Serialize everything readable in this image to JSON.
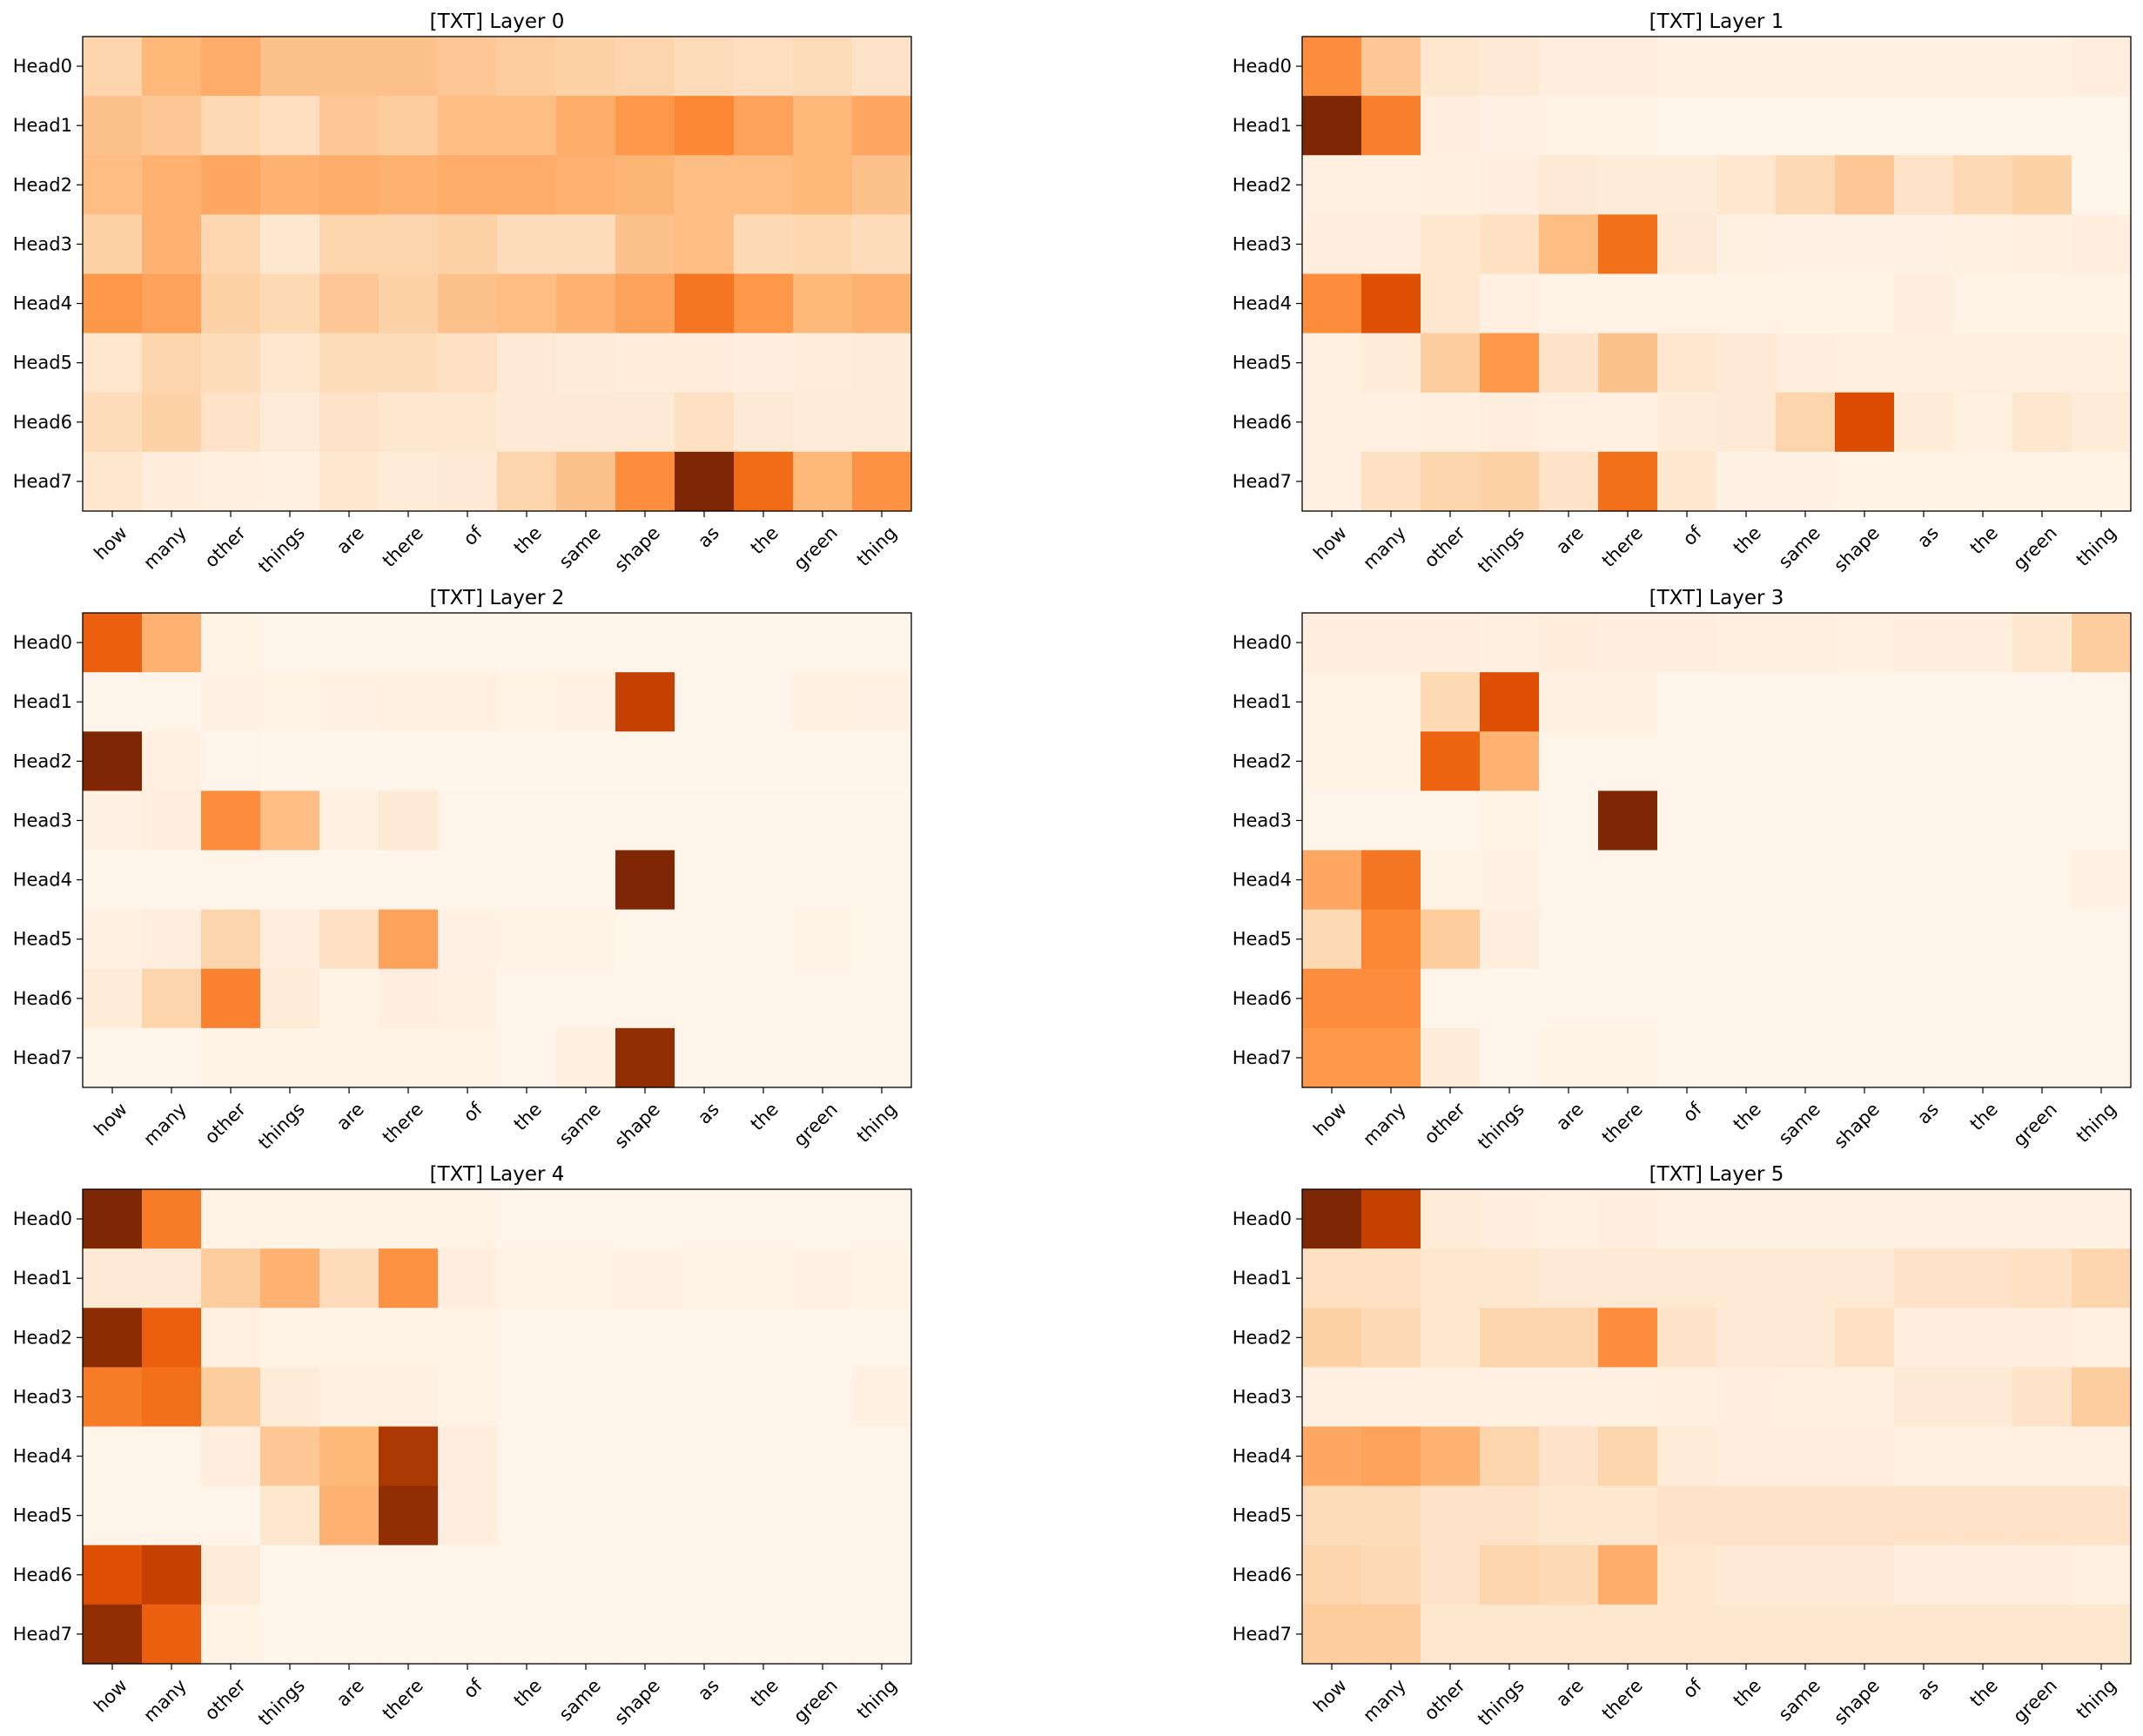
{
  "chart_data": [
    {
      "type": "heatmap",
      "title": "[TXT] Layer 0",
      "colormap": "Oranges",
      "value_range": [
        0,
        1
      ],
      "grid": false,
      "x_labels": [
        "how",
        "many",
        "other",
        "things",
        "are",
        "there",
        "of",
        "the",
        "same",
        "shape",
        "as",
        "the",
        "green",
        "thing"
      ],
      "y_labels": [
        "Head0",
        "Head1",
        "Head2",
        "Head3",
        "Head4",
        "Head5",
        "Head6",
        "Head7"
      ],
      "values": [
        [
          0.22,
          0.34,
          0.38,
          0.3,
          0.3,
          0.3,
          0.28,
          0.26,
          0.24,
          0.22,
          0.18,
          0.17,
          0.18,
          0.14
        ],
        [
          0.3,
          0.28,
          0.2,
          0.17,
          0.28,
          0.26,
          0.32,
          0.32,
          0.38,
          0.46,
          0.52,
          0.42,
          0.34,
          0.4
        ],
        [
          0.32,
          0.36,
          0.4,
          0.36,
          0.38,
          0.36,
          0.38,
          0.38,
          0.36,
          0.35,
          0.32,
          0.32,
          0.34,
          0.3
        ],
        [
          0.24,
          0.36,
          0.21,
          0.12,
          0.22,
          0.22,
          0.24,
          0.18,
          0.18,
          0.3,
          0.32,
          0.2,
          0.21,
          0.18
        ],
        [
          0.46,
          0.42,
          0.24,
          0.2,
          0.28,
          0.24,
          0.3,
          0.32,
          0.36,
          0.42,
          0.58,
          0.46,
          0.34,
          0.36
        ],
        [
          0.12,
          0.22,
          0.18,
          0.12,
          0.18,
          0.18,
          0.16,
          0.1,
          0.08,
          0.07,
          0.07,
          0.06,
          0.07,
          0.08
        ],
        [
          0.18,
          0.24,
          0.14,
          0.09,
          0.14,
          0.12,
          0.12,
          0.1,
          0.1,
          0.1,
          0.16,
          0.1,
          0.08,
          0.08
        ],
        [
          0.12,
          0.07,
          0.05,
          0.04,
          0.12,
          0.08,
          0.1,
          0.22,
          0.3,
          0.5,
          1.0,
          0.62,
          0.34,
          0.48
        ]
      ]
    },
    {
      "type": "heatmap",
      "title": "[TXT] Layer 1",
      "colormap": "Oranges",
      "value_range": [
        0,
        1
      ],
      "grid": false,
      "x_labels": [
        "how",
        "many",
        "other",
        "things",
        "are",
        "there",
        "of",
        "the",
        "same",
        "shape",
        "as",
        "the",
        "green",
        "thing"
      ],
      "y_labels": [
        "Head0",
        "Head1",
        "Head2",
        "Head3",
        "Head4",
        "Head5",
        "Head6",
        "Head7"
      ],
      "values": [
        [
          0.5,
          0.28,
          0.12,
          0.1,
          0.06,
          0.06,
          0.04,
          0.04,
          0.04,
          0.04,
          0.04,
          0.04,
          0.04,
          0.06
        ],
        [
          1.0,
          0.55,
          0.06,
          0.03,
          0.02,
          0.02,
          0.01,
          0.01,
          0.01,
          0.01,
          0.01,
          0.01,
          0.01,
          0.01
        ],
        [
          0.04,
          0.04,
          0.05,
          0.06,
          0.1,
          0.08,
          0.08,
          0.12,
          0.2,
          0.28,
          0.14,
          0.2,
          0.24,
          0.0
        ],
        [
          0.06,
          0.06,
          0.12,
          0.16,
          0.32,
          0.6,
          0.1,
          0.04,
          0.03,
          0.03,
          0.03,
          0.04,
          0.05,
          0.06
        ],
        [
          0.5,
          0.72,
          0.12,
          0.04,
          0.02,
          0.02,
          0.02,
          0.02,
          0.02,
          0.02,
          0.06,
          0.02,
          0.02,
          0.02
        ],
        [
          0.04,
          0.08,
          0.26,
          0.46,
          0.14,
          0.3,
          0.12,
          0.1,
          0.06,
          0.05,
          0.05,
          0.05,
          0.05,
          0.05
        ],
        [
          0.04,
          0.04,
          0.05,
          0.06,
          0.04,
          0.04,
          0.08,
          0.1,
          0.22,
          0.74,
          0.08,
          0.04,
          0.12,
          0.08
        ],
        [
          0.04,
          0.16,
          0.22,
          0.24,
          0.14,
          0.6,
          0.12,
          0.03,
          0.03,
          0.02,
          0.02,
          0.02,
          0.02,
          0.02
        ]
      ]
    },
    {
      "type": "heatmap",
      "title": "[TXT] Layer 2",
      "colormap": "Oranges",
      "value_range": [
        0,
        1
      ],
      "grid": false,
      "x_labels": [
        "how",
        "many",
        "other",
        "things",
        "are",
        "there",
        "of",
        "the",
        "same",
        "shape",
        "as",
        "the",
        "green",
        "thing"
      ],
      "y_labels": [
        "Head0",
        "Head1",
        "Head2",
        "Head3",
        "Head4",
        "Head5",
        "Head6",
        "Head7"
      ],
      "values": [
        [
          0.66,
          0.36,
          0.02,
          0.01,
          0.01,
          0.01,
          0.01,
          0.01,
          0.01,
          0.01,
          0.01,
          0.01,
          0.01,
          0.01
        ],
        [
          0.01,
          0.01,
          0.03,
          0.02,
          0.03,
          0.04,
          0.04,
          0.02,
          0.03,
          0.8,
          0.01,
          0.01,
          0.04,
          0.03
        ],
        [
          1.0,
          0.04,
          0.01,
          0.0,
          0.0,
          0.0,
          0.0,
          0.0,
          0.0,
          0.0,
          0.0,
          0.0,
          0.0,
          0.0
        ],
        [
          0.03,
          0.06,
          0.5,
          0.32,
          0.04,
          0.1,
          0.01,
          0.01,
          0.01,
          0.01,
          0.01,
          0.01,
          0.01,
          0.01
        ],
        [
          0.01,
          0.01,
          0.01,
          0.01,
          0.01,
          0.01,
          0.01,
          0.01,
          0.01,
          1.0,
          0.01,
          0.01,
          0.01,
          0.01
        ],
        [
          0.04,
          0.06,
          0.22,
          0.06,
          0.16,
          0.42,
          0.03,
          0.02,
          0.02,
          0.01,
          0.01,
          0.01,
          0.02,
          0.01
        ],
        [
          0.08,
          0.22,
          0.54,
          0.08,
          0.02,
          0.06,
          0.04,
          0.01,
          0.01,
          0.01,
          0.01,
          0.01,
          0.01,
          0.01
        ],
        [
          0.01,
          0.01,
          0.02,
          0.02,
          0.02,
          0.02,
          0.02,
          0.01,
          0.05,
          0.94,
          0.01,
          0.01,
          0.01,
          0.01
        ]
      ]
    },
    {
      "type": "heatmap",
      "title": "[TXT] Layer 3",
      "colormap": "Oranges",
      "value_range": [
        0,
        1
      ],
      "grid": false,
      "x_labels": [
        "how",
        "many",
        "other",
        "things",
        "are",
        "there",
        "of",
        "the",
        "same",
        "shape",
        "as",
        "the",
        "green",
        "thing"
      ],
      "y_labels": [
        "Head0",
        "Head1",
        "Head2",
        "Head3",
        "Head4",
        "Head5",
        "Head6",
        "Head7"
      ],
      "values": [
        [
          0.06,
          0.06,
          0.06,
          0.05,
          0.07,
          0.06,
          0.06,
          0.05,
          0.05,
          0.04,
          0.06,
          0.06,
          0.12,
          0.26
        ],
        [
          0.02,
          0.02,
          0.2,
          0.72,
          0.04,
          0.04,
          0.01,
          0.01,
          0.01,
          0.01,
          0.01,
          0.01,
          0.01,
          0.01
        ],
        [
          0.02,
          0.02,
          0.64,
          0.36,
          0.01,
          0.01,
          0.01,
          0.01,
          0.01,
          0.01,
          0.01,
          0.01,
          0.01,
          0.01
        ],
        [
          0.01,
          0.01,
          0.01,
          0.02,
          0.01,
          1.0,
          0.01,
          0.01,
          0.01,
          0.01,
          0.01,
          0.01,
          0.01,
          0.01
        ],
        [
          0.4,
          0.58,
          0.02,
          0.03,
          0.01,
          0.01,
          0.01,
          0.01,
          0.01,
          0.01,
          0.01,
          0.01,
          0.01,
          0.03
        ],
        [
          0.2,
          0.52,
          0.26,
          0.06,
          0.01,
          0.01,
          0.01,
          0.01,
          0.01,
          0.01,
          0.01,
          0.01,
          0.01,
          0.01
        ],
        [
          0.5,
          0.5,
          0.01,
          0.01,
          0.01,
          0.01,
          0.01,
          0.01,
          0.01,
          0.01,
          0.01,
          0.01,
          0.01,
          0.01
        ],
        [
          0.46,
          0.46,
          0.08,
          0.01,
          0.02,
          0.02,
          0.01,
          0.01,
          0.01,
          0.01,
          0.01,
          0.01,
          0.01,
          0.01
        ]
      ]
    },
    {
      "type": "heatmap",
      "title": "[TXT] Layer 4",
      "colormap": "Oranges",
      "value_range": [
        0,
        1
      ],
      "grid": false,
      "x_labels": [
        "how",
        "many",
        "other",
        "things",
        "are",
        "there",
        "of",
        "the",
        "same",
        "shape",
        "as",
        "the",
        "green",
        "thing"
      ],
      "y_labels": [
        "Head0",
        "Head1",
        "Head2",
        "Head3",
        "Head4",
        "Head5",
        "Head6",
        "Head7"
      ],
      "values": [
        [
          1.0,
          0.56,
          0.02,
          0.02,
          0.02,
          0.02,
          0.02,
          0.01,
          0.01,
          0.01,
          0.01,
          0.01,
          0.01,
          0.01
        ],
        [
          0.1,
          0.1,
          0.26,
          0.36,
          0.18,
          0.48,
          0.06,
          0.02,
          0.02,
          0.03,
          0.02,
          0.02,
          0.03,
          0.02
        ],
        [
          0.96,
          0.66,
          0.04,
          0.02,
          0.02,
          0.02,
          0.02,
          0.01,
          0.01,
          0.01,
          0.01,
          0.01,
          0.01,
          0.01
        ],
        [
          0.56,
          0.6,
          0.26,
          0.08,
          0.04,
          0.04,
          0.02,
          0.01,
          0.01,
          0.01,
          0.01,
          0.01,
          0.01,
          0.04
        ],
        [
          0.01,
          0.01,
          0.06,
          0.28,
          0.34,
          0.86,
          0.06,
          0.01,
          0.01,
          0.01,
          0.01,
          0.01,
          0.01,
          0.01
        ],
        [
          0.01,
          0.01,
          0.01,
          0.12,
          0.36,
          0.94,
          0.06,
          0.01,
          0.01,
          0.01,
          0.01,
          0.01,
          0.01,
          0.01
        ],
        [
          0.72,
          0.8,
          0.08,
          0.01,
          0.01,
          0.01,
          0.01,
          0.01,
          0.01,
          0.01,
          0.01,
          0.01,
          0.01,
          0.01
        ],
        [
          0.94,
          0.66,
          0.02,
          0.01,
          0.01,
          0.01,
          0.01,
          0.01,
          0.01,
          0.01,
          0.01,
          0.01,
          0.01,
          0.01
        ]
      ]
    },
    {
      "type": "heatmap",
      "title": "[TXT] Layer 5",
      "colormap": "Oranges",
      "value_range": [
        0,
        1
      ],
      "grid": false,
      "x_labels": [
        "how",
        "many",
        "other",
        "things",
        "are",
        "there",
        "of",
        "the",
        "same",
        "shape",
        "as",
        "the",
        "green",
        "thing"
      ],
      "y_labels": [
        "Head0",
        "Head1",
        "Head2",
        "Head3",
        "Head4",
        "Head5",
        "Head6",
        "Head7"
      ],
      "values": [
        [
          1.0,
          0.8,
          0.08,
          0.06,
          0.04,
          0.06,
          0.03,
          0.03,
          0.03,
          0.03,
          0.03,
          0.03,
          0.03,
          0.03
        ],
        [
          0.16,
          0.16,
          0.12,
          0.12,
          0.1,
          0.1,
          0.1,
          0.1,
          0.1,
          0.1,
          0.14,
          0.14,
          0.16,
          0.22
        ],
        [
          0.24,
          0.2,
          0.12,
          0.22,
          0.22,
          0.5,
          0.14,
          0.1,
          0.1,
          0.16,
          0.06,
          0.06,
          0.06,
          0.04
        ],
        [
          0.04,
          0.04,
          0.04,
          0.04,
          0.04,
          0.04,
          0.05,
          0.06,
          0.05,
          0.05,
          0.1,
          0.1,
          0.14,
          0.26
        ],
        [
          0.4,
          0.42,
          0.36,
          0.22,
          0.14,
          0.22,
          0.08,
          0.06,
          0.06,
          0.06,
          0.04,
          0.04,
          0.04,
          0.04
        ],
        [
          0.18,
          0.18,
          0.14,
          0.14,
          0.12,
          0.12,
          0.14,
          0.14,
          0.14,
          0.14,
          0.14,
          0.14,
          0.14,
          0.14
        ],
        [
          0.22,
          0.2,
          0.14,
          0.22,
          0.2,
          0.38,
          0.12,
          0.1,
          0.1,
          0.1,
          0.06,
          0.06,
          0.06,
          0.04
        ],
        [
          0.26,
          0.26,
          0.12,
          0.12,
          0.12,
          0.12,
          0.12,
          0.12,
          0.12,
          0.12,
          0.12,
          0.12,
          0.12,
          0.12
        ]
      ]
    }
  ]
}
